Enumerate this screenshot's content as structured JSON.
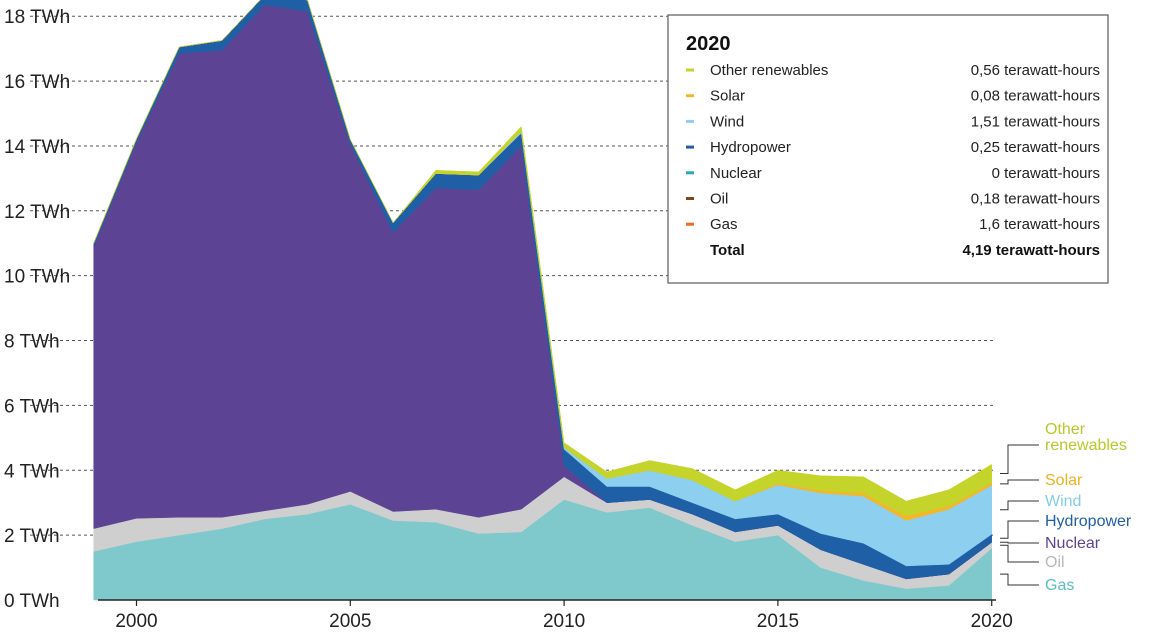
{
  "chart_data": {
    "type": "area",
    "stacked": true,
    "x": [
      1999,
      2000,
      2001,
      2002,
      2003,
      2004,
      2005,
      2006,
      2007,
      2008,
      2009,
      2010,
      2011,
      2012,
      2013,
      2014,
      2015,
      2016,
      2017,
      2018,
      2019,
      2020
    ],
    "xticks": [
      2000,
      2005,
      2010,
      2015,
      2020
    ],
    "xlim": [
      1999.1,
      2020.1
    ],
    "ylim": [
      0,
      18.5
    ],
    "yticks": [
      0,
      2,
      4,
      6,
      8,
      10,
      12,
      14,
      16,
      18
    ],
    "ytick_labels": [
      "0 TWh",
      "2 TWh",
      "4 TWh",
      "6 TWh",
      "8 TWh",
      "10 TWh",
      "12 TWh",
      "14 TWh",
      "16 TWh",
      "18 TWh"
    ],
    "grid": "horizontal dashed",
    "series": [
      {
        "name": "Gas",
        "color": "#7fc9cc",
        "values": [
          1.5,
          1.8,
          2.0,
          2.2,
          2.5,
          2.65,
          2.95,
          2.45,
          2.4,
          2.05,
          2.1,
          3.1,
          2.7,
          2.85,
          2.3,
          1.8,
          2.0,
          1.0,
          0.6,
          0.35,
          0.45,
          1.6
        ]
      },
      {
        "name": "Oil",
        "color": "#cfcfcf",
        "values": [
          0.7,
          0.72,
          0.55,
          0.35,
          0.25,
          0.3,
          0.4,
          0.28,
          0.4,
          0.5,
          0.7,
          0.7,
          0.3,
          0.25,
          0.35,
          0.3,
          0.3,
          0.55,
          0.5,
          0.3,
          0.35,
          0.18
        ]
      },
      {
        "name": "Nuclear",
        "color": "#5c4394",
        "values": [
          8.7,
          11.6,
          14.3,
          14.4,
          15.6,
          15.2,
          10.7,
          8.6,
          9.9,
          10.1,
          11.2,
          0.35,
          0.0,
          0.0,
          0.0,
          0.0,
          0.0,
          0.0,
          0.0,
          0.0,
          0.0,
          0.0
        ]
      },
      {
        "name": "Hydropower",
        "color": "#1f5fa6",
        "values": [
          0.1,
          0.1,
          0.2,
          0.3,
          0.3,
          0.35,
          0.15,
          0.3,
          0.45,
          0.45,
          0.4,
          0.5,
          0.5,
          0.4,
          0.35,
          0.4,
          0.35,
          0.5,
          0.65,
          0.4,
          0.3,
          0.25
        ]
      },
      {
        "name": "Wind",
        "color": "#8dcfee",
        "values": [
          0.0,
          0.0,
          0.0,
          0.0,
          0.0,
          0.0,
          0.0,
          0.0,
          0.0,
          0.0,
          0.05,
          0.05,
          0.25,
          0.5,
          0.7,
          0.55,
          0.9,
          1.25,
          1.45,
          1.4,
          1.7,
          1.51
        ]
      },
      {
        "name": "Solar",
        "color": "#f2b72a",
        "values": [
          0.0,
          0.0,
          0.0,
          0.0,
          0.0,
          0.0,
          0.0,
          0.0,
          0.0,
          0.0,
          0.0,
          0.0,
          0.0,
          0.0,
          0.0,
          0.0,
          0.05,
          0.08,
          0.1,
          0.15,
          0.1,
          0.08
        ]
      },
      {
        "name": "Other renewables",
        "color": "#c4d42b",
        "values": [
          0.0,
          0.0,
          0.0,
          0.0,
          0.0,
          0.0,
          0.0,
          0.0,
          0.1,
          0.1,
          0.15,
          0.15,
          0.2,
          0.3,
          0.35,
          0.35,
          0.4,
          0.45,
          0.5,
          0.45,
          0.5,
          0.56
        ]
      }
    ],
    "legend_box": {
      "title": "2020",
      "position": "top-right",
      "rows": [
        {
          "name": "Other renewables",
          "value": "0,56 terawatt-hours",
          "color": "#c4d42b"
        },
        {
          "name": "Solar",
          "value": "0,08 terawatt-hours",
          "color": "#f2b72a"
        },
        {
          "name": "Wind",
          "value": "1,51 terawatt-hours",
          "color": "#8dcfee"
        },
        {
          "name": "Hydropower",
          "value": "0,25 terawatt-hours",
          "color": "#1f5fa6"
        },
        {
          "name": "Nuclear",
          "value": "0 terawatt-hours",
          "color": "#2aa8b8"
        },
        {
          "name": "Oil",
          "value": "0,18 terawatt-hours",
          "color": "#7a4a1e"
        },
        {
          "name": "Gas",
          "value": "1,6 terawatt-hours",
          "color": "#f06b1d"
        }
      ],
      "total": {
        "name": "Total",
        "value": "4,19 terawatt-hours"
      }
    },
    "end_labels": [
      {
        "lines": [
          "Other",
          "renewables"
        ],
        "color": "#b8c82a"
      },
      {
        "lines": [
          "Solar"
        ],
        "color": "#f0b020"
      },
      {
        "lines": [
          "Wind"
        ],
        "color": "#86cbe8"
      },
      {
        "lines": [
          "Hydropower"
        ],
        "color": "#1f5fa6"
      },
      {
        "lines": [
          "Nuclear"
        ],
        "color": "#5c4394"
      },
      {
        "lines": [
          "Oil"
        ],
        "color": "#b8b8b8"
      },
      {
        "lines": [
          "Gas"
        ],
        "color": "#5bbcc3"
      }
    ]
  }
}
